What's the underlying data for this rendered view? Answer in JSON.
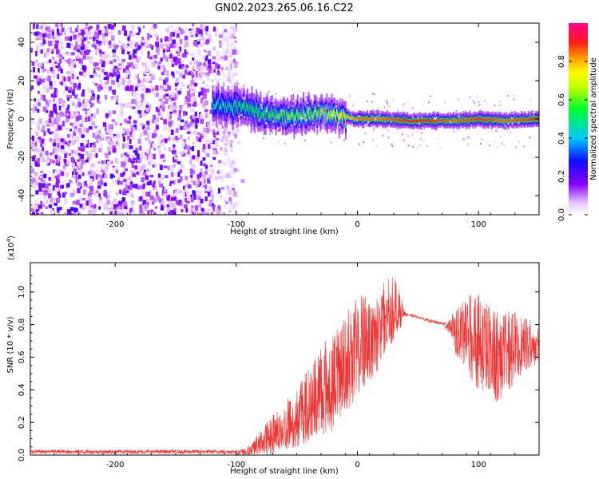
{
  "title": "GN02.2023.265.06.16.C22",
  "colors": {
    "snr_line": "#ee3333",
    "spectrogram_background": "#ffffff"
  },
  "colorbar": {
    "label": "Normalized spectral amplitude",
    "ticks": [
      "0.0",
      "0.2",
      "0.4",
      "0.6",
      "0.8"
    ],
    "tick_values": [
      0.0,
      0.2,
      0.4,
      0.6,
      0.8
    ],
    "range": [
      0,
      1
    ],
    "colormap": "rainbow (white-violet-blue-cyan-green-yellow-orange-red-magenta)"
  },
  "chart_data": [
    {
      "type": "heatmap",
      "title": "GN02.2023.265.06.16.C22",
      "xlabel": "Height of straight line (km)",
      "ylabel": "Frequency (Hz)",
      "xlim": [
        -270,
        150
      ],
      "ylim": [
        -50,
        50
      ],
      "x_tick_labels": [
        "-200",
        "-100",
        "0",
        "100"
      ],
      "x_ticks": [
        -200,
        -100,
        0,
        100
      ],
      "y_tick_labels": [
        "40",
        "20",
        "0",
        "-20",
        "-40"
      ],
      "y_ticks": [
        40,
        20,
        0,
        -20,
        -40
      ],
      "noise_region_x": [
        -270,
        -100
      ],
      "signal_track": [
        {
          "x": -120,
          "freq": 7,
          "amp": 0.45
        },
        {
          "x": -100,
          "freq": 6,
          "amp": 0.5
        },
        {
          "x": -80,
          "freq": 4,
          "amp": 0.55
        },
        {
          "x": -60,
          "freq": 1,
          "amp": 0.6
        },
        {
          "x": -40,
          "freq": 3,
          "amp": 0.6
        },
        {
          "x": -20,
          "freq": 2,
          "amp": 0.7
        },
        {
          "x": 0,
          "freq": 0,
          "amp": 0.85
        },
        {
          "x": 20,
          "freq": 0,
          "amp": 0.85
        },
        {
          "x": 40,
          "freq": -1,
          "amp": 0.9
        },
        {
          "x": 60,
          "freq": -1,
          "amp": 0.9
        },
        {
          "x": 80,
          "freq": -1,
          "amp": 0.85
        },
        {
          "x": 100,
          "freq": 0,
          "amp": 0.9
        },
        {
          "x": 120,
          "freq": -1,
          "amp": 0.85
        },
        {
          "x": 150,
          "freq": 0,
          "amp": 0.9
        }
      ]
    },
    {
      "type": "line",
      "xlabel": "Height of straight line (km)",
      "ylabel": "SNR (10 * v/v)",
      "y_multiplier_label": "(x10",
      "y_multiplier_exp": "4",
      "xlim": [
        -270,
        150
      ],
      "ylim": [
        0,
        1.18
      ],
      "x_tick_labels": [
        "-200",
        "-100",
        "0",
        "100"
      ],
      "x_ticks": [
        -200,
        -100,
        0,
        100
      ],
      "y_tick_labels": [
        "0.0",
        "0.2",
        "0.4",
        "0.6",
        "0.8",
        "1.0"
      ],
      "y_ticks": [
        0.0,
        0.2,
        0.4,
        0.6,
        0.8,
        1.0
      ],
      "series": [
        {
          "x": [
            -270,
            -100,
            -90,
            -80,
            -70,
            -60,
            -50,
            -40,
            -30,
            -20,
            -10,
            0,
            10,
            20,
            30,
            40,
            50,
            60,
            70,
            80,
            90,
            100,
            110,
            120,
            130,
            140,
            150
          ],
          "upper": [
            0.03,
            0.03,
            0.05,
            0.15,
            0.25,
            0.33,
            0.42,
            0.55,
            0.68,
            0.75,
            0.88,
            0.98,
            1.02,
            1.06,
            1.12,
            0.88,
            0.86,
            0.84,
            0.82,
            0.9,
            0.98,
            1.0,
            0.95,
            0.9,
            0.88,
            0.85,
            0.8
          ],
          "lower": [
            0.0,
            0.0,
            0.0,
            0.0,
            0.0,
            0.02,
            0.05,
            0.08,
            0.12,
            0.15,
            0.25,
            0.35,
            0.45,
            0.55,
            0.7,
            0.84,
            0.83,
            0.8,
            0.79,
            0.62,
            0.5,
            0.4,
            0.3,
            0.35,
            0.45,
            0.52,
            0.55
          ]
        }
      ]
    }
  ]
}
